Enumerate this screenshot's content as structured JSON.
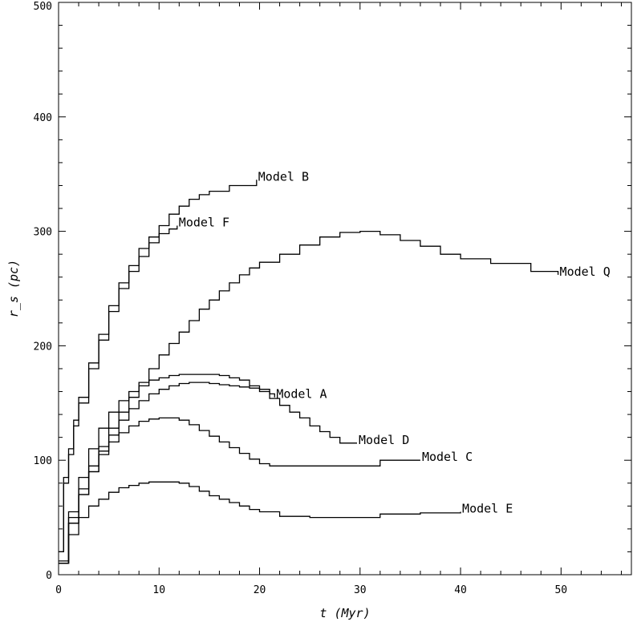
{
  "chart_data": {
    "type": "line",
    "title": "",
    "xlabel": "t (Myr)",
    "ylabel": "r_s (pc)",
    "xlim": [
      0,
      57
    ],
    "ylim": [
      0,
      500
    ],
    "x_ticks": [
      0,
      10,
      20,
      30,
      40,
      50
    ],
    "y_ticks": [
      0,
      100,
      200,
      300,
      400,
      500
    ],
    "grid": false,
    "legend": "none",
    "line_color": "#000000",
    "series": [
      {
        "name": "Model B",
        "x": [
          0,
          0.5,
          1,
          1.5,
          2,
          3,
          4,
          5,
          6,
          7,
          8,
          9,
          10,
          11,
          12,
          13,
          14,
          15,
          17,
          19.7
        ],
        "y": [
          20,
          85,
          110,
          135,
          155,
          185,
          210,
          235,
          255,
          270,
          285,
          295,
          305,
          315,
          322,
          328,
          332,
          335,
          340,
          345
        ]
      },
      {
        "name": "Model F",
        "x": [
          0,
          0.5,
          1,
          1.5,
          2,
          3,
          4,
          5,
          6,
          7,
          8,
          9,
          10,
          11,
          11.8
        ],
        "y": [
          20,
          80,
          105,
          130,
          150,
          180,
          205,
          230,
          250,
          265,
          278,
          290,
          298,
          302,
          305
        ]
      },
      {
        "name": "Model Q",
        "x": [
          0,
          1,
          2,
          3,
          4,
          5,
          6,
          7,
          8,
          9,
          10,
          11,
          12,
          13,
          14,
          15,
          16,
          17,
          18,
          19,
          20,
          22,
          24,
          26,
          28,
          30,
          32,
          34,
          36,
          38,
          40,
          43,
          47,
          49.7
        ],
        "y": [
          10,
          50,
          75,
          95,
          112,
          128,
          142,
          155,
          168,
          180,
          192,
          202,
          212,
          222,
          232,
          240,
          248,
          255,
          262,
          268,
          273,
          280,
          288,
          295,
          299,
          300,
          297,
          292,
          287,
          280,
          276,
          272,
          265,
          262
        ]
      },
      {
        "name": "Model A",
        "x": [
          0,
          1,
          2,
          3,
          4,
          5,
          6,
          7,
          8,
          9,
          10,
          11,
          12,
          13,
          14,
          15,
          16,
          17,
          18,
          19,
          20,
          21,
          21.5
        ],
        "y": [
          10,
          45,
          70,
          90,
          108,
          122,
          135,
          145,
          152,
          158,
          162,
          165,
          167,
          168,
          168,
          167,
          166,
          165,
          164,
          163,
          162,
          158,
          155
        ]
      },
      {
        "name": "Model D",
        "x": [
          0,
          1,
          2,
          3,
          4,
          5,
          6,
          7,
          8,
          9,
          10,
          11,
          12,
          13,
          14,
          15,
          16,
          17,
          18,
          19,
          20,
          21,
          22,
          23,
          24,
          25,
          26,
          27,
          28,
          29.7
        ],
        "y": [
          12,
          55,
          85,
          110,
          128,
          142,
          152,
          160,
          165,
          170,
          172,
          174,
          175,
          175,
          175,
          175,
          174,
          172,
          170,
          165,
          160,
          154,
          148,
          142,
          137,
          130,
          125,
          120,
          115,
          115
        ]
      },
      {
        "name": "Model C",
        "x": [
          0,
          1,
          2,
          3,
          4,
          5,
          6,
          7,
          8,
          9,
          10,
          11,
          12,
          13,
          14,
          15,
          16,
          17,
          18,
          19,
          20,
          21,
          24,
          28,
          32,
          34,
          36
        ],
        "y": [
          10,
          45,
          70,
          90,
          105,
          116,
          124,
          130,
          134,
          136,
          137,
          137,
          135,
          131,
          126,
          121,
          116,
          111,
          106,
          101,
          97,
          95,
          95,
          95,
          100,
          100,
          100
        ]
      },
      {
        "name": "Model E",
        "x": [
          0,
          1,
          2,
          3,
          4,
          5,
          6,
          7,
          8,
          9,
          10,
          11,
          12,
          13,
          14,
          15,
          16,
          17,
          18,
          19,
          20,
          22,
          25,
          28,
          32,
          36,
          40
        ],
        "y": [
          10,
          35,
          50,
          60,
          66,
          72,
          76,
          78,
          80,
          81,
          81,
          81,
          80,
          77,
          73,
          69,
          66,
          63,
          60,
          57,
          55,
          51,
          50,
          50,
          53,
          54,
          55
        ]
      }
    ]
  }
}
